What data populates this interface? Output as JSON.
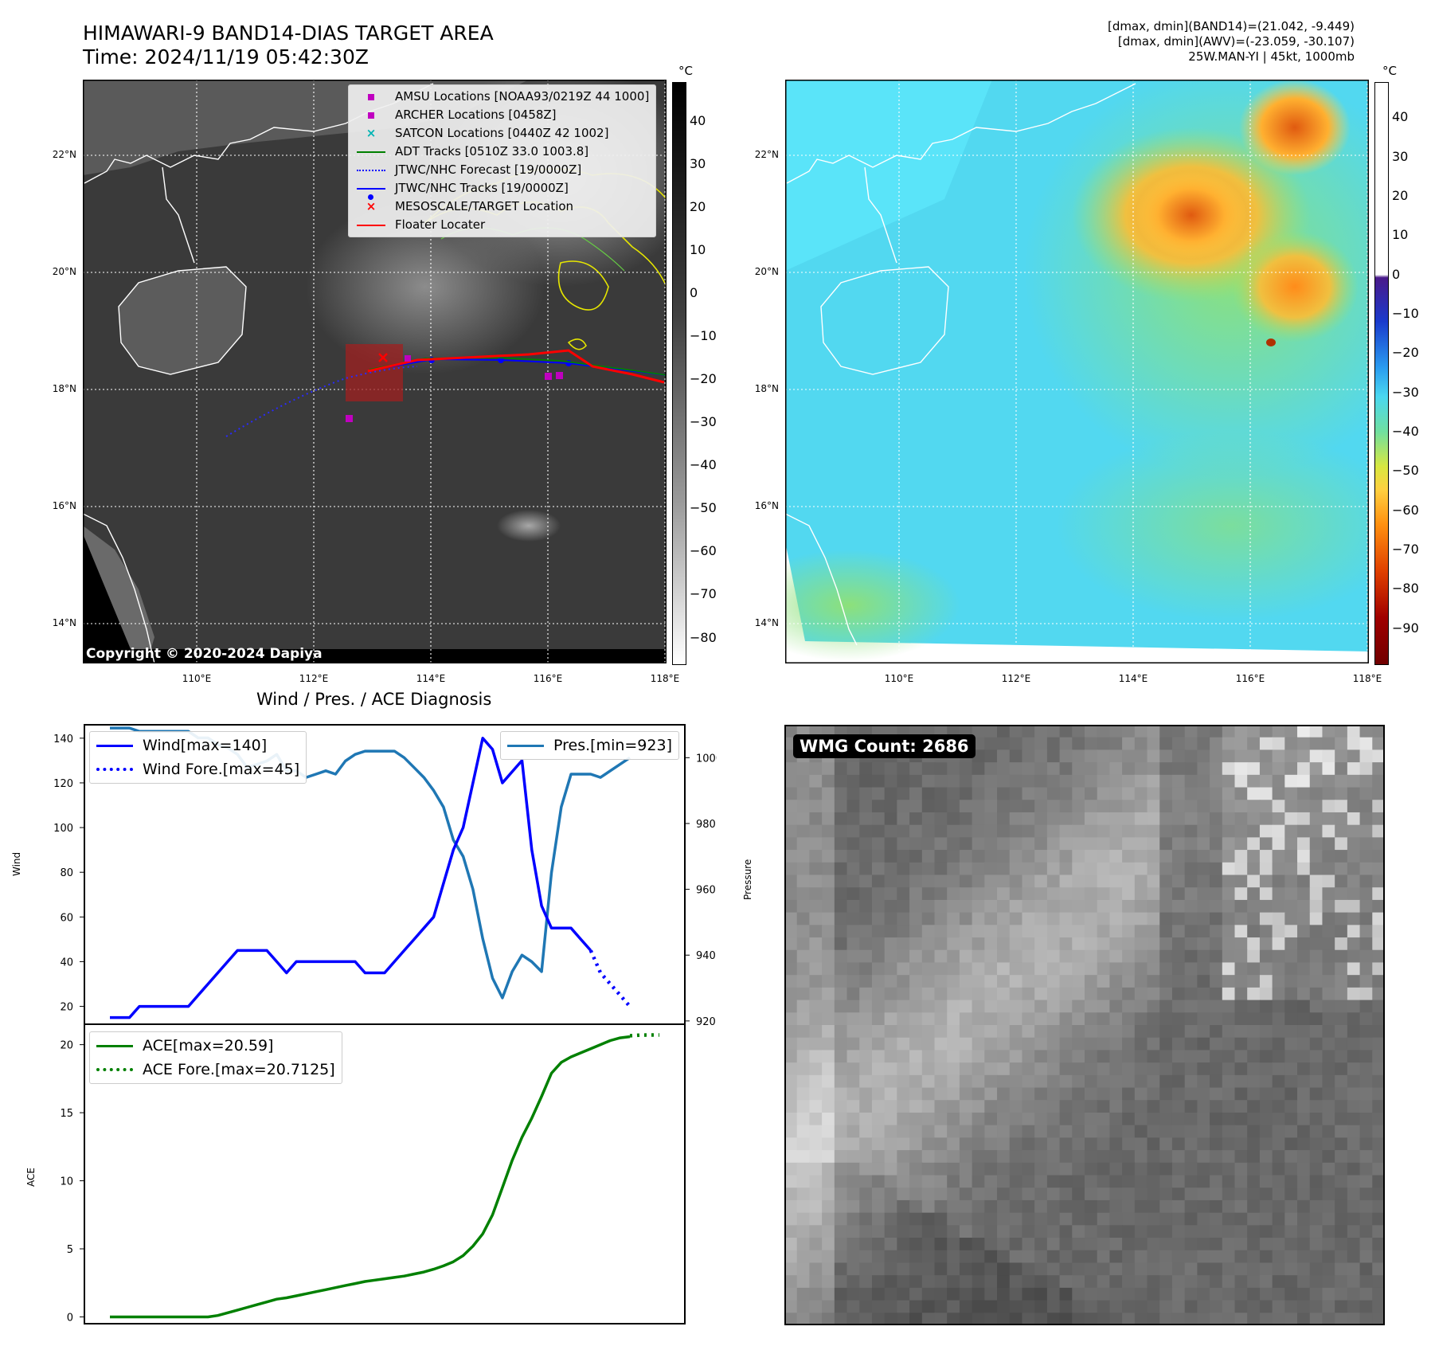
{
  "header": {
    "title_line1": "HIMAWARI-9 BAND14-DIAS TARGET AREA",
    "title_line2": "Time: 2024/11/19 05:42:30Z",
    "info_line1": "[dmax, dmin](BAND14)=(21.042, -9.449)",
    "info_line2": "[dmax, dmin](AWV)=(-23.059, -30.107)",
    "info_line3": "25W.MAN-YI | 45kt, 1000mb"
  },
  "map_panels": {
    "unit": "°C",
    "lon_labels": [
      "110°E",
      "112°E",
      "114°E",
      "116°E",
      "118°E"
    ],
    "lat_labels": [
      "22°N",
      "20°N",
      "18°N",
      "16°N",
      "14°N"
    ],
    "colorbar_left_ticks": [
      "40",
      "30",
      "20",
      "10",
      "0",
      "−10",
      "−20",
      "−30",
      "−40",
      "−50",
      "−60",
      "−70",
      "−80"
    ],
    "colorbar_right_ticks": [
      "40",
      "30",
      "20",
      "10",
      "0",
      "−10",
      "−20",
      "−30",
      "−40",
      "−50",
      "−60",
      "−70",
      "−80",
      "−90"
    ],
    "copyright": "Copyright © 2020-2024 Dapiya",
    "legend": [
      {
        "label": "AMSU Locations [NOAA93/0219Z 44 1000]",
        "color": "#c000c0",
        "symbol": "square"
      },
      {
        "label": "ARCHER Locations [0458Z]",
        "color": "#c000c0",
        "symbol": "square"
      },
      {
        "label": "SATCON Locations [0440Z 42 1002]",
        "color": "#00b4b4",
        "symbol": "x"
      },
      {
        "label": "ADT Tracks [0510Z 33.0 1003.8]",
        "color": "#008000",
        "symbol": "line"
      },
      {
        "label": "JTWC/NHC Forecast [19/0000Z]",
        "color": "#0000ff",
        "symbol": "dotted"
      },
      {
        "label": "JTWC/NHC Tracks [19/0000Z]",
        "color": "#0000ff",
        "symbol": "line-dot"
      },
      {
        "label": "MESOSCALE/TARGET Location",
        "color": "#ff0000",
        "symbol": "x"
      },
      {
        "label": "Floater Locater",
        "color": "#ff0000",
        "symbol": "line"
      }
    ]
  },
  "diagnosis": {
    "title": "Wind / Pres. / ACE Diagnosis",
    "wind_ylabel": "Wind",
    "pres_ylabel": "Pressure",
    "ace_ylabel": "ACE",
    "legend_wind": "Wind[max=140]",
    "legend_wind_fore": "Wind Fore.[max=45]",
    "legend_pres": "Pres.[min=923]",
    "legend_ace": "ACE[max=20.59]",
    "legend_ace_fore": "ACE Fore.[max=20.7125]"
  },
  "wmg": {
    "label": "WMG Count: 2686"
  },
  "chart_data": [
    {
      "type": "line",
      "title": "Wind / Pres. / ACE Diagnosis",
      "ylabel": "Wind",
      "ylim": [
        12,
        146
      ],
      "y_ticks": [
        20,
        40,
        60,
        80,
        100,
        120,
        140
      ],
      "series": [
        {
          "name": "Wind[max=140]",
          "color": "#0000ff",
          "values": [
            15,
            15,
            15,
            20,
            20,
            20,
            20,
            20,
            20,
            25,
            30,
            35,
            40,
            45,
            45,
            45,
            45,
            40,
            35,
            40,
            40,
            40,
            40,
            40,
            40,
            40,
            35,
            35,
            35,
            40,
            45,
            50,
            55,
            60,
            75,
            90,
            100,
            120,
            140,
            135,
            120,
            125,
            130,
            90,
            65,
            55,
            55,
            55,
            50,
            45
          ]
        },
        {
          "name": "Wind Fore.[max=45]",
          "color": "#0000ff",
          "style": "dotted",
          "start_index": 49,
          "values": [
            45,
            35,
            30,
            25,
            20
          ]
        }
      ],
      "secondary_axis": {
        "ylabel": "Pressure",
        "ylim": [
          919,
          1010
        ],
        "y_ticks": [
          920,
          940,
          960,
          980,
          1000
        ],
        "series": [
          {
            "name": "Pres.[min=923]",
            "color": "#1f77b4",
            "values": [
              1009,
              1009,
              1009,
              1008,
              1008,
              1008,
              1008,
              1008,
              1008,
              1006,
              1006,
              1004,
              1003,
              1001,
              997,
              998,
              999,
              1001,
              996,
              996,
              994,
              995,
              996,
              995,
              999,
              1001,
              1002,
              1002,
              1002,
              1002,
              1000,
              997,
              994,
              990,
              985,
              975,
              970,
              960,
              945,
              933,
              927,
              935,
              940,
              938,
              935,
              965,
              985,
              995,
              995,
              995,
              994,
              996,
              998,
              1000
            ]
          }
        ]
      }
    },
    {
      "type": "line",
      "ylabel": "ACE",
      "ylim": [
        -0.5,
        21.5
      ],
      "y_ticks": [
        0,
        5,
        10,
        15,
        20
      ],
      "series": [
        {
          "name": "ACE[max=20.59]",
          "color": "#008000",
          "values": [
            0,
            0,
            0,
            0,
            0,
            0,
            0,
            0,
            0,
            0,
            0,
            0.1,
            0.3,
            0.5,
            0.7,
            0.9,
            1.1,
            1.3,
            1.4,
            1.55,
            1.7,
            1.85,
            2.0,
            2.15,
            2.3,
            2.45,
            2.6,
            2.7,
            2.8,
            2.9,
            3.0,
            3.15,
            3.3,
            3.5,
            3.75,
            4.05,
            4.5,
            5.2,
            6.1,
            7.5,
            9.5,
            11.5,
            13.2,
            14.6,
            16.2,
            17.9,
            18.7,
            19.1,
            19.4,
            19.7,
            20.0,
            20.3,
            20.5,
            20.59
          ]
        },
        {
          "name": "ACE Fore.[max=20.7125]",
          "color": "#008000",
          "style": "dotted",
          "start_index": 53,
          "values": [
            20.65,
            20.7,
            20.7125,
            20.7125
          ]
        }
      ]
    }
  ]
}
